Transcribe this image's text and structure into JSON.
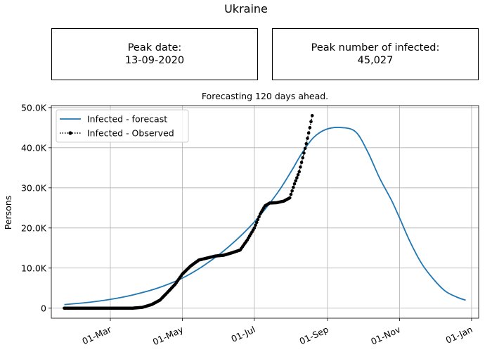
{
  "suptitle": "Ukraine",
  "peak_date_box": {
    "label": "Peak date:",
    "value": "13-09-2020"
  },
  "peak_infected_box": {
    "label": "Peak number of infected:",
    "value": "45,027"
  },
  "chart_data": {
    "type": "line",
    "title": "Forecasting 120 days ahead.",
    "xlabel": "",
    "ylabel": "Persons",
    "xlim": [
      "2020-01-11",
      "2021-01-07"
    ],
    "ylim": [
      -2500,
      50500
    ],
    "grid": true,
    "legend_position": "top-left",
    "x_ticks": [
      {
        "date": "2020-03-01",
        "label": "01-Mar"
      },
      {
        "date": "2020-05-01",
        "label": "01-May"
      },
      {
        "date": "2020-07-01",
        "label": "01-Jul"
      },
      {
        "date": "2020-09-01",
        "label": "01-Sep"
      },
      {
        "date": "2020-11-01",
        "label": "01-Nov"
      },
      {
        "date": "2021-01-01",
        "label": "01-Jan"
      }
    ],
    "y_ticks": [
      {
        "value": 0,
        "label": "0"
      },
      {
        "value": 10000,
        "label": "10.0K"
      },
      {
        "value": 20000,
        "label": "20.0K"
      },
      {
        "value": 30000,
        "label": "30.0K"
      },
      {
        "value": 40000,
        "label": "40.0K"
      },
      {
        "value": 50000,
        "label": "50.0K"
      }
    ],
    "series": [
      {
        "name": "Infected - forecast",
        "color": "#1f77b4",
        "style": "solid",
        "points": [
          [
            "2020-01-22",
            900
          ],
          [
            "2020-02-10",
            1400
          ],
          [
            "2020-03-01",
            2200
          ],
          [
            "2020-03-20",
            3300
          ],
          [
            "2020-04-10",
            5000
          ],
          [
            "2020-05-01",
            7500
          ],
          [
            "2020-05-20",
            10800
          ],
          [
            "2020-06-10",
            15500
          ],
          [
            "2020-07-01",
            21500
          ],
          [
            "2020-07-20",
            28500
          ],
          [
            "2020-08-01",
            34000
          ],
          [
            "2020-08-10",
            38500
          ],
          [
            "2020-08-20",
            42500
          ],
          [
            "2020-08-31",
            44600
          ],
          [
            "2020-09-13",
            45027
          ],
          [
            "2020-09-25",
            43900
          ],
          [
            "2020-10-05",
            39000
          ],
          [
            "2020-10-15",
            32500
          ],
          [
            "2020-10-25",
            27000
          ],
          [
            "2020-11-01",
            22500
          ],
          [
            "2020-11-10",
            16500
          ],
          [
            "2020-11-20",
            11000
          ],
          [
            "2020-12-01",
            6800
          ],
          [
            "2020-12-10",
            4200
          ],
          [
            "2020-12-20",
            2700
          ],
          [
            "2020-12-27",
            2000
          ]
        ]
      },
      {
        "name": "Infected - Observed",
        "color": "#000000",
        "style": "dotted-markers",
        "points": [
          [
            "2020-01-22",
            0
          ],
          [
            "2020-03-01",
            0
          ],
          [
            "2020-03-20",
            0
          ],
          [
            "2020-03-28",
            200
          ],
          [
            "2020-04-05",
            900
          ],
          [
            "2020-04-12",
            2000
          ],
          [
            "2020-04-18",
            3800
          ],
          [
            "2020-04-25",
            6000
          ],
          [
            "2020-05-01",
            8500
          ],
          [
            "2020-05-08",
            10500
          ],
          [
            "2020-05-15",
            12000
          ],
          [
            "2020-05-22",
            12500
          ],
          [
            "2020-05-29",
            13000
          ],
          [
            "2020-06-05",
            13200
          ],
          [
            "2020-06-12",
            13800
          ],
          [
            "2020-06-19",
            14500
          ],
          [
            "2020-06-25",
            17000
          ],
          [
            "2020-07-01",
            20000
          ],
          [
            "2020-07-06",
            23500
          ],
          [
            "2020-07-10",
            25500
          ],
          [
            "2020-07-14",
            26200
          ],
          [
            "2020-07-20",
            26300
          ],
          [
            "2020-07-26",
            26700
          ],
          [
            "2020-07-31",
            27500
          ],
          [
            "2020-08-04",
            31000
          ],
          [
            "2020-08-08",
            34000
          ],
          [
            "2020-08-11",
            37500
          ],
          [
            "2020-08-14",
            41000
          ],
          [
            "2020-08-17",
            45000
          ],
          [
            "2020-08-19",
            48000
          ]
        ]
      }
    ]
  }
}
